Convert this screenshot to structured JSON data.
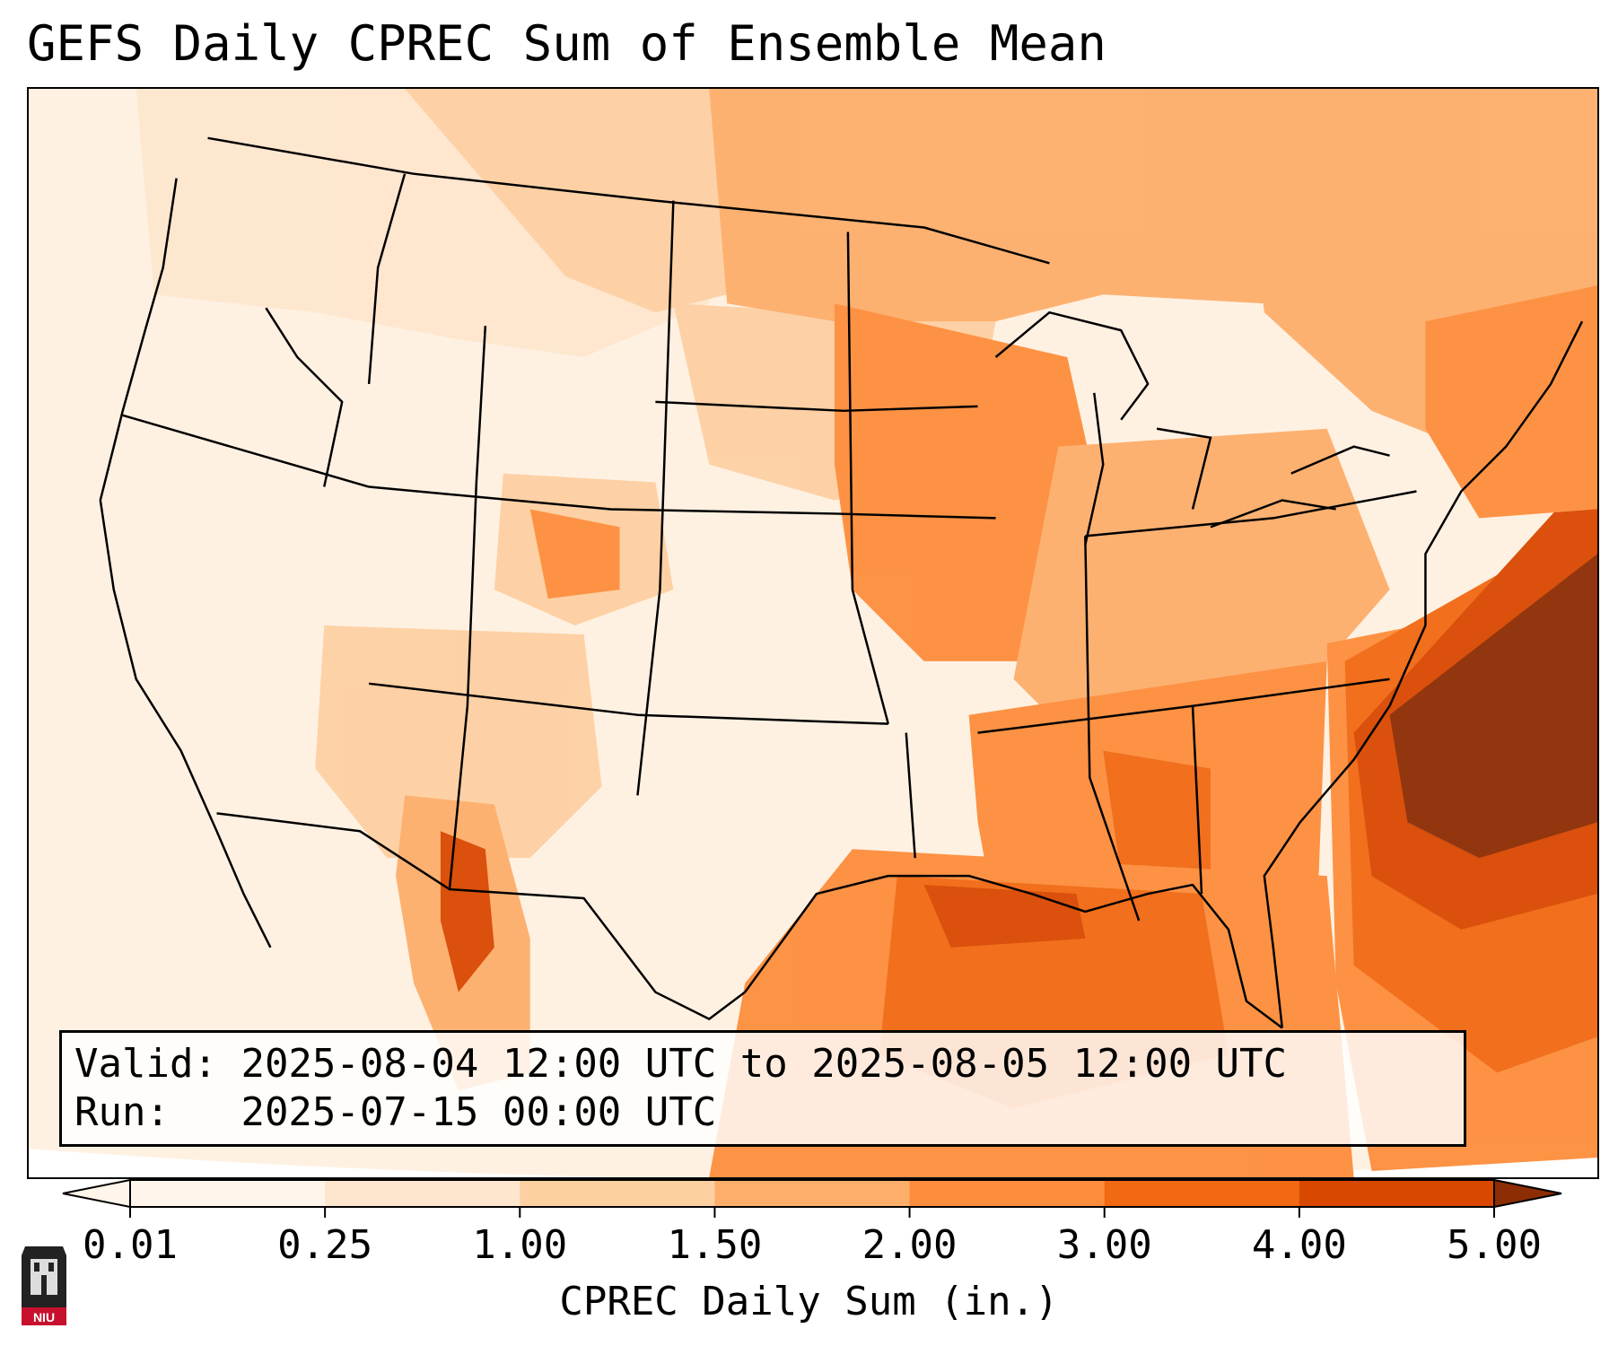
{
  "title": "GEFS Daily CPREC Sum of Ensemble Mean",
  "info": {
    "valid_label": "Valid:",
    "valid_value": "2025-08-04 12:00 UTC to 2025-08-05 12:00 UTC",
    "run_label": "Run:",
    "run_value": "2025-07-15 00:00 UTC"
  },
  "colorbar": {
    "label": "CPREC Daily Sum (in.)",
    "ticks": [
      "0.01",
      "0.25",
      "1.00",
      "1.50",
      "2.00",
      "3.00",
      "4.00",
      "5.00"
    ],
    "colors": [
      "#fff5eb",
      "#fee6ce",
      "#fdd0a2",
      "#fdae6b",
      "#fd8d3c",
      "#f16913",
      "#d94801",
      "#8c2d04"
    ],
    "extend": "both"
  },
  "logo": {
    "text": "NIU",
    "colors": {
      "red": "#c8102e",
      "dark": "#222222"
    }
  }
}
